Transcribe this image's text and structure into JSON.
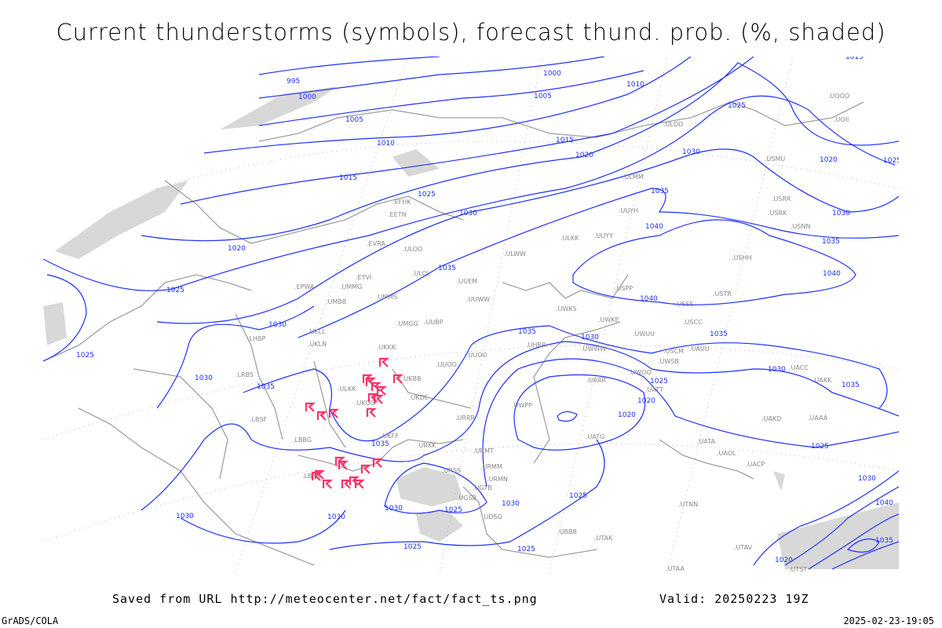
{
  "title": "Current thunderstorms (symbols), forecast thund. prob. (%, shaded)",
  "footer": {
    "saved": "Saved from URL http://meteocenter.net/fact/fact_ts.png",
    "valid": "Valid: 20250223 19Z",
    "software": "GrADS/COLA",
    "timestamp": "2025-02-23-19:05"
  },
  "colors": {
    "isobars": "#1e2fff",
    "thunderstorm_symbol": "#ff3366",
    "coastline": "#a0a0a0",
    "probability_shading": "#d8d8d8"
  },
  "isobar_labels": [
    "995",
    "1000",
    "1000",
    "1005",
    "1010",
    "1005",
    "1010",
    "1015",
    "1015",
    "1020",
    "1025",
    "1020",
    "1025",
    "1020",
    "1030",
    "1030",
    "1035",
    "1030",
    "1035",
    "1040",
    "1040",
    "1040",
    "1025",
    "1030",
    "1025",
    "1030",
    "1035",
    "1035",
    "1035",
    "1030",
    "1035",
    "1030",
    "1025",
    "1020",
    "1020",
    "1035",
    "1025",
    "1030",
    "1035",
    "1030",
    "1030",
    "1030",
    "1025",
    "1030",
    "1025",
    "1025",
    "1025",
    "1020",
    "1040",
    "1035",
    "1015",
    "1025"
  ],
  "stations": [
    "ULDD",
    "UUYY",
    "ULKK",
    "ULWW",
    "UUEM",
    "UUWW",
    "UMMS",
    "UMGG",
    "UUBP",
    "UKKK",
    "UKBB",
    "ULKK",
    "UKOO",
    "UKDE",
    "UUOO",
    "UUOO",
    "UMMG",
    "UMBB",
    "EPWA",
    "EYVI",
    "ULOL",
    "EVRA",
    "ULOO",
    "EETN",
    "EFHK",
    "UKLL",
    "UKLN",
    "LHBP",
    "LRBS",
    "LBSF",
    "LBBG",
    "LBBS",
    "UKFF",
    "URKK",
    "URRR",
    "URMM",
    "URMN",
    "URMT",
    "URSS",
    "UGSB",
    "UGTB",
    "UDSG",
    "UBBB",
    "UTAK",
    "UATT",
    "UARR",
    "UATG",
    "UACC",
    "UAKK",
    "UAAA",
    "UAOL",
    "USSS",
    "USTR",
    "USCC",
    "USCM",
    "UAUU",
    "USPP",
    "USHH",
    "USRR",
    "USRK",
    "USNN",
    "USMU",
    "UOOO",
    "UOII",
    "ULMM",
    "UUYH",
    "UWOO",
    "UWKS",
    "UWWW",
    "UWKE",
    "UWUU",
    "UWSB",
    "UWPP",
    "UHRR",
    "UAKD",
    "UATA",
    "UACP",
    "UTNN",
    "UTAV",
    "UTAA",
    "UTST"
  ],
  "thunderstorm_count": 22
}
